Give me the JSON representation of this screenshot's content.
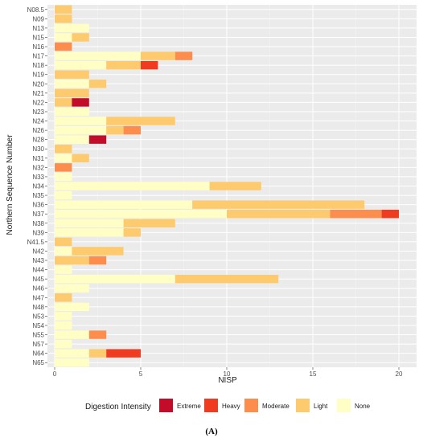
{
  "chart_data": {
    "type": "bar",
    "orientation": "horizontal",
    "stacked": true,
    "xlabel": "NISP",
    "ylabel": "Northern Sequence Number",
    "xlim": [
      0,
      20.5
    ],
    "xticks": [
      0,
      5,
      10,
      15,
      20
    ],
    "grid": true,
    "legend_position": "bottom",
    "legend_title": "Digestion Intensity",
    "categories": [
      "N08.5",
      "N09",
      "N13",
      "N15",
      "N16",
      "N17",
      "N18",
      "N19",
      "N20",
      "N21",
      "N22",
      "N23",
      "N24",
      "N26",
      "N28",
      "N30",
      "N31",
      "N32",
      "N33",
      "N34",
      "N35",
      "N36",
      "N37",
      "N38",
      "N39",
      "N41.5",
      "N42",
      "N43",
      "N44",
      "N45",
      "N46",
      "N47",
      "N48",
      "N53",
      "N54",
      "N55",
      "N57",
      "N64",
      "N65"
    ],
    "series": [
      {
        "name": "None",
        "color": "#FFFFC5",
        "values": [
          0,
          0,
          2,
          1,
          0,
          5,
          3,
          0,
          2,
          0,
          0,
          2,
          3,
          3,
          2,
          0,
          1,
          0,
          1,
          9,
          1,
          8,
          10,
          4,
          4,
          0,
          1,
          0,
          1,
          7,
          2,
          0,
          2,
          1,
          1,
          2,
          1,
          2,
          2
        ]
      },
      {
        "name": "Light",
        "color": "#FDCB6E",
        "values": [
          1,
          1,
          0,
          1,
          0,
          2,
          2,
          2,
          1,
          2,
          1,
          0,
          4,
          1,
          0,
          1,
          1,
          0,
          0,
          3,
          0,
          10,
          6,
          3,
          1,
          1,
          3,
          2,
          0,
          6,
          0,
          1,
          0,
          0,
          0,
          0,
          0,
          1,
          0
        ]
      },
      {
        "name": "Moderate",
        "color": "#FD8D4C",
        "values": [
          0,
          0,
          0,
          0,
          1,
          1,
          0,
          0,
          0,
          0,
          0,
          0,
          0,
          1,
          0,
          0,
          0,
          1,
          0,
          0,
          0,
          0,
          3,
          0,
          0,
          0,
          0,
          1,
          0,
          0,
          0,
          0,
          0,
          0,
          0,
          1,
          0,
          0,
          0
        ]
      },
      {
        "name": "Heavy",
        "color": "#F03B20",
        "values": [
          0,
          0,
          0,
          0,
          0,
          0,
          1,
          0,
          0,
          0,
          0,
          0,
          0,
          0,
          0,
          0,
          0,
          0,
          0,
          0,
          0,
          0,
          1,
          0,
          0,
          0,
          0,
          0,
          0,
          0,
          0,
          0,
          0,
          0,
          0,
          0,
          0,
          2,
          0
        ]
      },
      {
        "name": "Extreme",
        "color": "#C20C2A",
        "values": [
          0,
          0,
          0,
          0,
          0,
          0,
          0,
          0,
          0,
          0,
          1,
          0,
          0,
          0,
          1,
          0,
          0,
          0,
          0,
          0,
          0,
          0,
          0,
          0,
          0,
          0,
          0,
          0,
          0,
          0,
          0,
          0,
          0,
          0,
          0,
          0,
          0,
          0,
          0
        ]
      }
    ],
    "legend_order": [
      "Extreme",
      "Heavy",
      "Moderate",
      "Light",
      "None"
    ]
  },
  "panel_label": "(A)",
  "colors": {
    "panel_bg": "#EBEBEB",
    "grid": "#FFFFFF"
  }
}
